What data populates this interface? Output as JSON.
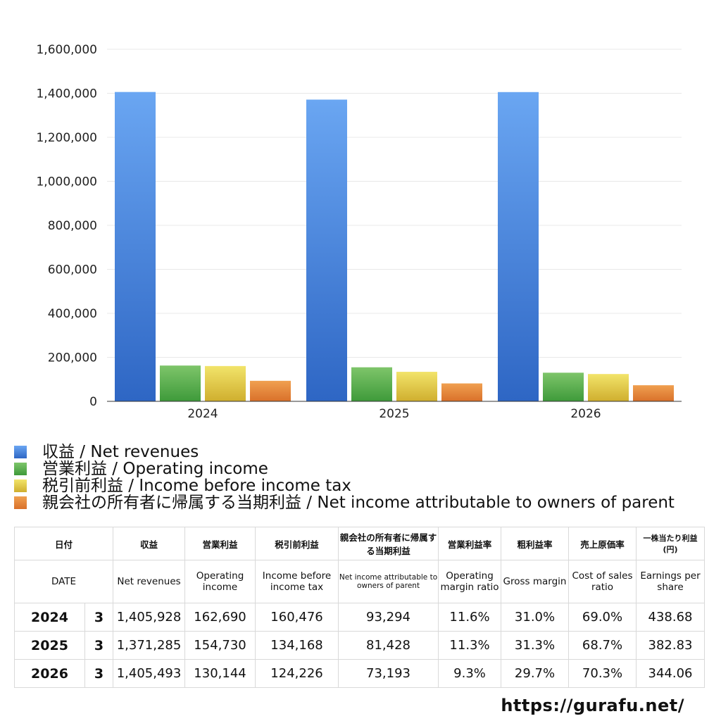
{
  "chart_data": {
    "type": "bar",
    "categories": [
      "2024",
      "2025",
      "2026"
    ],
    "series": [
      {
        "name": "収益 / Net revenues",
        "values": [
          1405928,
          1371285,
          1405493
        ],
        "color_top": "#6aa6f2",
        "color_bottom": "#2e66c4"
      },
      {
        "name": "営業利益 / Operating income",
        "values": [
          162690,
          154730,
          130144
        ],
        "color_top": "#7ec56a",
        "color_bottom": "#3e9a3a"
      },
      {
        "name": "税引前利益 / Income before income tax",
        "values": [
          160476,
          134168,
          124226
        ],
        "color_top": "#f2e46a",
        "color_bottom": "#cfae2e"
      },
      {
        "name": "親会社の所有者に帰属する当期利益 / Net income attributable to owners of parent",
        "values": [
          93294,
          81428,
          73193
        ],
        "color_top": "#f0a050",
        "color_bottom": "#d9702a"
      }
    ],
    "ylim": [
      0,
      1600000
    ],
    "yticks": [
      "0",
      "200,000",
      "400,000",
      "600,000",
      "800,000",
      "1,000,000",
      "1,200,000",
      "1,400,000",
      "1,600,000"
    ],
    "grid": true,
    "legend_position": "bottom"
  },
  "table": {
    "header_ja": [
      "日付",
      "収益",
      "営業利益",
      "税引前利益",
      "親会社の所有者に帰属する当期利益",
      "営業利益率",
      "粗利益率",
      "売上原価率",
      "一株当たり利益(円)"
    ],
    "header_en": [
      "DATE",
      "Net revenues",
      "Operating income",
      "Income before income tax",
      "Net income attributable to owners of parent",
      "Operating margin ratio",
      "Gross margin",
      "Cost of sales ratio",
      "Earnings per share"
    ],
    "rows": [
      {
        "year": "2024",
        "month": "3",
        "net_revenues": "1,405,928",
        "operating_income": "162,690",
        "income_before_tax": "160,476",
        "net_income": "93,294",
        "operating_margin": "11.6%",
        "gross_margin": "31.0%",
        "cost_ratio": "69.0%",
        "eps": "438.68"
      },
      {
        "year": "2025",
        "month": "3",
        "net_revenues": "1,371,285",
        "operating_income": "154,730",
        "income_before_tax": "134,168",
        "net_income": "81,428",
        "operating_margin": "11.3%",
        "gross_margin": "31.3%",
        "cost_ratio": "68.7%",
        "eps": "382.83"
      },
      {
        "year": "2026",
        "month": "3",
        "net_revenues": "1,405,493",
        "operating_income": "130,144",
        "income_before_tax": "124,226",
        "net_income": "73,193",
        "operating_margin": "9.3%",
        "gross_margin": "29.7%",
        "cost_ratio": "70.3%",
        "eps": "344.06"
      }
    ]
  },
  "footer": {
    "url": "https://gurafu.net/"
  }
}
